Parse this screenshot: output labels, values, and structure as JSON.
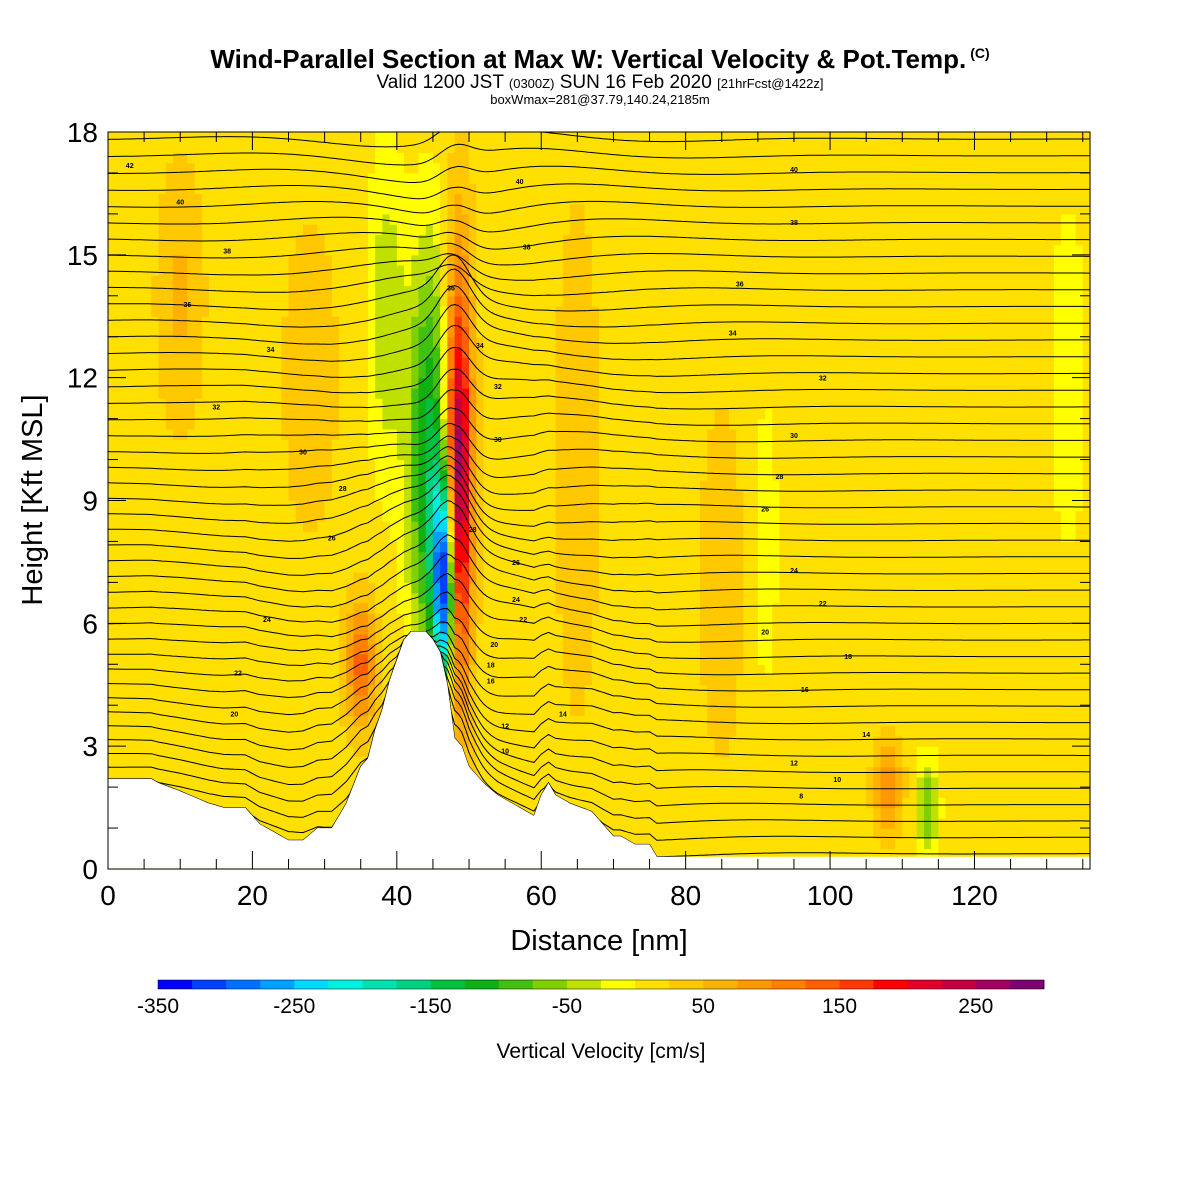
{
  "chart_data": {
    "type": "heatmap",
    "title": "Wind-Parallel Section at Max W: Vertical Velocity & Pot.Temp.",
    "title_suffix": "(C)",
    "subtitle": {
      "prefix": "Valid 1200 JST",
      "zulu": "(0300Z)",
      "date": "SUN 16 Feb 2020",
      "forecast": "[21hrFcst@1422z]"
    },
    "subtitle2": "boxWmax=281@37.79,140.24,2185m",
    "xlabel": "Distance [nm]",
    "ylabel": "Height [Kft MSL]",
    "xlim": [
      0,
      136
    ],
    "ylim": [
      0,
      18
    ],
    "xticks": [
      0,
      20,
      40,
      60,
      80,
      100,
      120
    ],
    "yticks": [
      0,
      3,
      6,
      9,
      12,
      15,
      18
    ],
    "colorbar": {
      "label": "Vertical Velocity [cm/s]",
      "min": -350,
      "max": 275,
      "step": 25,
      "ticks": [
        -350,
        -250,
        -150,
        -50,
        50,
        150,
        250
      ],
      "colors": [
        "#0000ff",
        "#0040ff",
        "#0070ff",
        "#00a0ff",
        "#00d8ff",
        "#00f0e0",
        "#00e0b0",
        "#00d080",
        "#00c040",
        "#10b010",
        "#40c010",
        "#80d000",
        "#c0e000",
        "#ffff00",
        "#ffe000",
        "#ffc800",
        "#ffb000",
        "#ff9800",
        "#ff8000",
        "#ff6000",
        "#ff3800",
        "#ff0000",
        "#e00028",
        "#c00040",
        "#a00060",
        "#800070"
      ]
    },
    "terrain_kft": {
      "x": [
        0,
        3,
        6,
        7,
        10,
        14,
        16,
        19,
        20,
        21,
        25,
        27,
        29,
        31,
        33,
        35,
        36,
        37,
        38,
        39,
        40,
        41,
        42,
        43,
        44,
        45,
        46,
        47,
        48,
        49,
        50,
        52,
        54,
        56,
        58,
        59,
        60,
        61,
        62,
        64,
        67,
        69,
        70,
        71,
        73,
        75,
        76,
        80,
        100,
        120,
        136
      ],
      "z": [
        2.2,
        2.2,
        2.2,
        2.1,
        1.9,
        1.6,
        1.5,
        1.5,
        1.3,
        1.1,
        0.7,
        0.7,
        1.0,
        1.0,
        1.6,
        2.5,
        2.7,
        3.4,
        3.9,
        4.6,
        5.1,
        5.6,
        5.8,
        5.8,
        5.8,
        5.6,
        5.3,
        4.5,
        3.2,
        3.0,
        2.5,
        2.1,
        1.8,
        1.6,
        1.4,
        1.3,
        1.8,
        2.1,
        1.8,
        1.6,
        1.4,
        1.0,
        0.8,
        0.8,
        0.6,
        0.6,
        0.3,
        0.3,
        0.3,
        0.3,
        0.3
      ]
    },
    "vertical_velocity_features": [
      {
        "x": 48.5,
        "z": 9.5,
        "sx": 1.8,
        "sz": 5,
        "w": 281
      },
      {
        "x": 46.5,
        "z": 7.0,
        "sx": 1.5,
        "sz": 2.5,
        "w": -330
      },
      {
        "x": 44.5,
        "z": 10.0,
        "sx": 3.0,
        "sz": 5,
        "w": -150
      },
      {
        "x": 38.5,
        "z": 13.5,
        "sx": 2.5,
        "sz": 4,
        "w": -60
      },
      {
        "x": 35,
        "z": 5.0,
        "sx": 2.0,
        "sz": 1.5,
        "w": 120
      },
      {
        "x": 108,
        "z": 2.0,
        "sx": 1.8,
        "sz": 1.0,
        "w": 90
      },
      {
        "x": 113.5,
        "z": 1.5,
        "sx": 1.5,
        "sz": 1.2,
        "w": -90
      },
      {
        "x": 10,
        "z": 14,
        "sx": 3,
        "sz": 3,
        "w": 40
      },
      {
        "x": 28,
        "z": 12,
        "sx": 4,
        "sz": 4,
        "w": 25
      },
      {
        "x": 65,
        "z": 10,
        "sx": 3,
        "sz": 6,
        "w": 30
      },
      {
        "x": 85,
        "z": 7,
        "sx": 3,
        "sz": 4,
        "w": 30
      },
      {
        "x": 91,
        "z": 8,
        "sx": 2,
        "sz": 4,
        "w": -30
      },
      {
        "x": 133,
        "z": 12,
        "sx": 3,
        "sz": 5,
        "w": -30
      }
    ],
    "isentrope_labels": [
      {
        "x": 3,
        "z": 17.2,
        "t": "42"
      },
      {
        "x": 10,
        "z": 16.3,
        "t": "40"
      },
      {
        "x": 16.5,
        "z": 15.1,
        "t": "38"
      },
      {
        "x": 11,
        "z": 13.8,
        "t": "36"
      },
      {
        "x": 22.5,
        "z": 12.7,
        "t": "34"
      },
      {
        "x": 15,
        "z": 11.3,
        "t": "32"
      },
      {
        "x": 27,
        "z": 10.2,
        "t": "30"
      },
      {
        "x": 32.5,
        "z": 9.3,
        "t": "28"
      },
      {
        "x": 31,
        "z": 8.1,
        "t": "26"
      },
      {
        "x": 22,
        "z": 6.1,
        "t": "24"
      },
      {
        "x": 18,
        "z": 4.8,
        "t": "22"
      },
      {
        "x": 17.5,
        "z": 3.8,
        "t": "20"
      },
      {
        "x": 57,
        "z": 16.8,
        "t": "40"
      },
      {
        "x": 58,
        "z": 15.2,
        "t": "38"
      },
      {
        "x": 47.5,
        "z": 14.2,
        "t": "36"
      },
      {
        "x": 51.5,
        "z": 12.8,
        "t": "34"
      },
      {
        "x": 54,
        "z": 11.8,
        "t": "32"
      },
      {
        "x": 54,
        "z": 10.5,
        "t": "30"
      },
      {
        "x": 50.5,
        "z": 8.3,
        "t": "28"
      },
      {
        "x": 56.5,
        "z": 7.5,
        "t": "26"
      },
      {
        "x": 56.5,
        "z": 6.6,
        "t": "24"
      },
      {
        "x": 57.5,
        "z": 6.1,
        "t": "22"
      },
      {
        "x": 53.5,
        "z": 5.5,
        "t": "20"
      },
      {
        "x": 53,
        "z": 5.0,
        "t": "18"
      },
      {
        "x": 53,
        "z": 4.6,
        "t": "16"
      },
      {
        "x": 63,
        "z": 3.8,
        "t": "14"
      },
      {
        "x": 55,
        "z": 3.5,
        "t": "12"
      },
      {
        "x": 55,
        "z": 2.9,
        "t": "10"
      },
      {
        "x": 95,
        "z": 17.1,
        "t": "40"
      },
      {
        "x": 95,
        "z": 15.8,
        "t": "38"
      },
      {
        "x": 87.5,
        "z": 14.3,
        "t": "36"
      },
      {
        "x": 86.5,
        "z": 13.1,
        "t": "34"
      },
      {
        "x": 99,
        "z": 12.0,
        "t": "32"
      },
      {
        "x": 95,
        "z": 10.6,
        "t": "30"
      },
      {
        "x": 93,
        "z": 9.6,
        "t": "28"
      },
      {
        "x": 91,
        "z": 8.8,
        "t": "26"
      },
      {
        "x": 95,
        "z": 7.3,
        "t": "24"
      },
      {
        "x": 99,
        "z": 6.5,
        "t": "22"
      },
      {
        "x": 91,
        "z": 5.8,
        "t": "20"
      },
      {
        "x": 102.5,
        "z": 5.2,
        "t": "18"
      },
      {
        "x": 96.5,
        "z": 4.4,
        "t": "16"
      },
      {
        "x": 105,
        "z": 3.3,
        "t": "14"
      },
      {
        "x": 95,
        "z": 2.6,
        "t": "12"
      },
      {
        "x": 101,
        "z": 2.2,
        "t": "10"
      },
      {
        "x": 96,
        "z": 1.8,
        "t": "8"
      }
    ]
  }
}
